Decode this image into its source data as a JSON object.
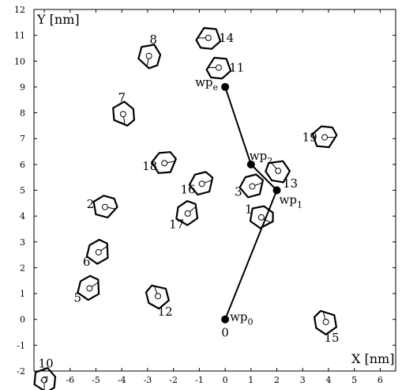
{
  "chart_data": {
    "type": "scatter",
    "xlabel": "X [nm]",
    "ylabel": "Y [nm]",
    "xlim": [
      -7.4,
      6.6
    ],
    "ylim": [
      -2,
      12
    ],
    "xticks": [
      -7,
      -6,
      -5,
      -4,
      -3,
      -2,
      -1,
      0,
      1,
      2,
      3,
      4,
      5,
      6
    ],
    "yticks": [
      -2,
      -1,
      0,
      1,
      2,
      3,
      4,
      5,
      6,
      7,
      8,
      9,
      10,
      11,
      12
    ],
    "grid": false,
    "objects": [
      {
        "label": "1",
        "center": [
          1.4,
          3.95
        ],
        "angle": 150,
        "scale": 0.85
      },
      {
        "label": "2",
        "center": [
          -4.65,
          4.35
        ],
        "angle": 170,
        "scale": 0.85
      },
      {
        "label": "3",
        "center": [
          1.05,
          5.15
        ],
        "angle": 200,
        "scale": 0.85
      },
      {
        "label": "5",
        "center": [
          -5.25,
          1.2
        ],
        "angle": 215,
        "scale": 0.85
      },
      {
        "label": "6",
        "center": [
          -4.9,
          2.6
        ],
        "angle": 215,
        "scale": 0.85
      },
      {
        "label": "7",
        "center": [
          -3.95,
          7.95
        ],
        "angle": 100,
        "scale": 0.85
      },
      {
        "label": "8",
        "center": [
          -2.95,
          10.2
        ],
        "angle": 80,
        "scale": 0.85
      },
      {
        "label": "10",
        "center": [
          -7.0,
          -2.35
        ],
        "angle": 90,
        "scale": 0.85
      },
      {
        "label": "11",
        "center": [
          -0.25,
          9.75
        ],
        "angle": 0,
        "scale": 0.85
      },
      {
        "label": "12",
        "center": [
          -2.6,
          0.9
        ],
        "angle": 290,
        "scale": 0.85
      },
      {
        "label": "13",
        "center": [
          2.05,
          5.75
        ],
        "angle": 310,
        "scale": 0.85
      },
      {
        "label": "14",
        "center": [
          -0.65,
          10.9
        ],
        "angle": 0,
        "scale": 0.85
      },
      {
        "label": "15",
        "center": [
          3.9,
          -0.1
        ],
        "angle": 285,
        "scale": 0.85
      },
      {
        "label": "16",
        "center": [
          -0.9,
          5.25
        ],
        "angle": 200,
        "scale": 0.85
      },
      {
        "label": "17",
        "center": [
          -1.45,
          4.1
        ],
        "angle": 220,
        "scale": 0.85
      },
      {
        "label": "18",
        "center": [
          -2.35,
          6.05
        ],
        "angle": 190,
        "scale": 0.85
      },
      {
        "label": "19",
        "center": [
          3.85,
          7.05
        ],
        "angle": 180,
        "scale": 0.85
      }
    ],
    "waypoints": [
      {
        "name": "wp",
        "sub": "0",
        "x": 0.0,
        "y": 0.0
      },
      {
        "name": "wp",
        "sub": "1",
        "x": 2.0,
        "y": 5.0
      },
      {
        "name": "wp",
        "sub": "2",
        "x": 1.0,
        "y": 6.0
      },
      {
        "name": "wp",
        "sub": "e",
        "x": 0.0,
        "y": 9.0
      }
    ],
    "path_order": [
      0,
      1,
      2,
      3
    ],
    "origin_label": "0"
  }
}
